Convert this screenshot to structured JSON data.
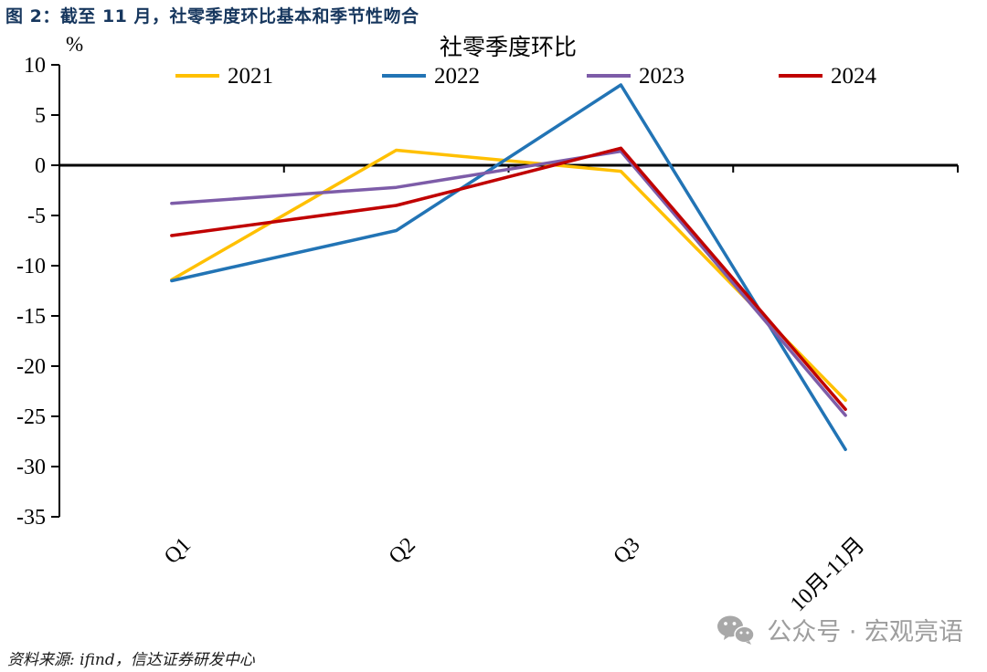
{
  "page": {
    "title": "图 2：截至 11 月，社零季度环比基本和季节性吻合",
    "source_note": "资料来源: ifind，信达证券研发中心",
    "watermark": "公众号 · 宏观亮语"
  },
  "chart_data": {
    "type": "line",
    "title": "社零季度环比",
    "unit_label": "%",
    "categories": [
      "Q1",
      "Q2",
      "Q3",
      "10月-11月"
    ],
    "series": [
      {
        "name": "2021",
        "color": "#FFC000",
        "values": [
          -11.4,
          1.5,
          -0.6,
          -23.4
        ]
      },
      {
        "name": "2022",
        "color": "#2274B5",
        "values": [
          -11.5,
          -6.5,
          8.0,
          -28.3
        ]
      },
      {
        "name": "2023",
        "color": "#7D5CA8",
        "values": [
          -3.8,
          -2.2,
          1.4,
          -24.9
        ]
      },
      {
        "name": "2024",
        "color": "#C00000",
        "values": [
          -7.0,
          -4.0,
          1.7,
          -24.3
        ]
      }
    ],
    "ylim": [
      -35,
      10
    ],
    "yticks": [
      10,
      5,
      0,
      -5,
      -10,
      -15,
      -20,
      -25,
      -30,
      -35
    ],
    "grid": false,
    "legend_position": "top",
    "zero_axis": true
  }
}
